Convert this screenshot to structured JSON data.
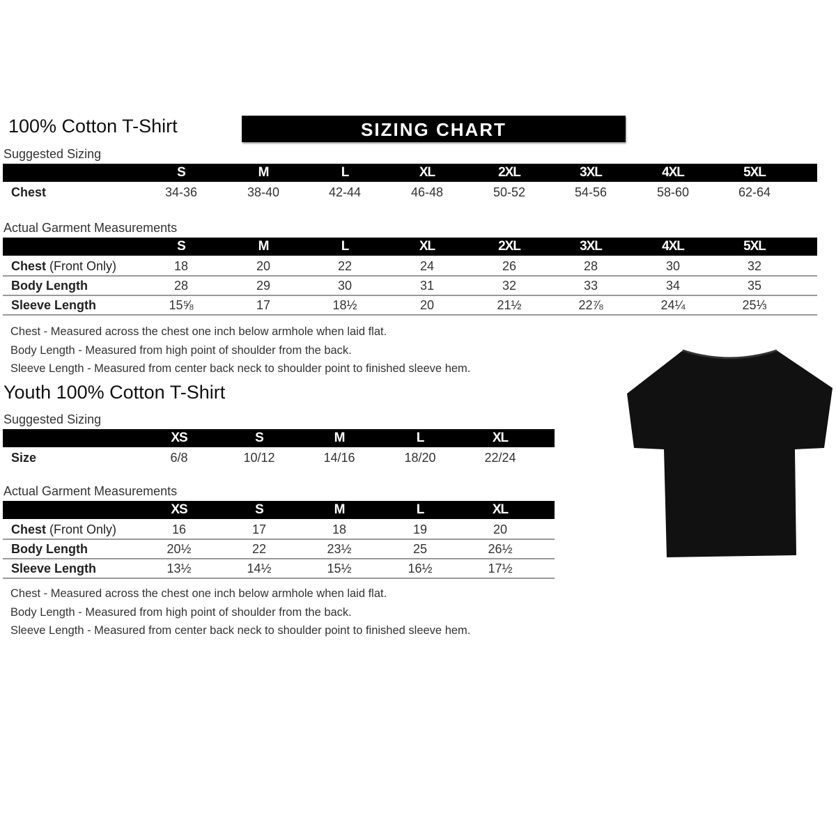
{
  "adult": {
    "title": "100% Cotton T-Shirt",
    "banner": "SIZING CHART",
    "suggested": {
      "label": "Suggested Sizing",
      "sizes": [
        "S",
        "M",
        "L",
        "XL",
        "2XL",
        "3XL",
        "4XL",
        "5XL"
      ],
      "rows": [
        {
          "label": "Chest",
          "values": [
            "34-36",
            "38-40",
            "42-44",
            "46-48",
            "50-52",
            "54-56",
            "58-60",
            "62-64"
          ]
        }
      ]
    },
    "actual": {
      "label": "Actual Garment Measurements",
      "sizes": [
        "S",
        "M",
        "L",
        "XL",
        "2XL",
        "3XL",
        "4XL",
        "5XL"
      ],
      "rows": [
        {
          "label": "Chest",
          "label_suffix": "(Front Only)",
          "values": [
            "18",
            "20",
            "22",
            "24",
            "26",
            "28",
            "30",
            "32"
          ]
        },
        {
          "label": "Body Length",
          "label_suffix": "",
          "values": [
            "28",
            "29",
            "30",
            "31",
            "32",
            "33",
            "34",
            "35"
          ]
        },
        {
          "label": "Sleeve Length",
          "label_suffix": "",
          "values": [
            "15⅝",
            "17",
            "18½",
            "20",
            "21½",
            "22⅞",
            "24¼",
            "25⅓"
          ]
        }
      ]
    },
    "notes": [
      "Chest - Measured across the chest one inch below armhole when laid flat.",
      "Body Length - Measured from high point of shoulder from the back.",
      "Sleeve Length - Measured from center back neck to shoulder point to finished sleeve hem."
    ]
  },
  "youth": {
    "title": "Youth 100% Cotton T-Shirt",
    "suggested": {
      "label": "Suggested Sizing",
      "sizes": [
        "XS",
        "S",
        "M",
        "L",
        "XL"
      ],
      "rows": [
        {
          "label": "Size",
          "values": [
            "6/8",
            "10/12",
            "14/16",
            "18/20",
            "22/24"
          ]
        }
      ]
    },
    "actual": {
      "label": "Actual Garment Measurements",
      "sizes": [
        "XS",
        "S",
        "M",
        "L",
        "XL"
      ],
      "rows": [
        {
          "label": "Chest",
          "label_suffix": "(Front Only)",
          "values": [
            "16",
            "17",
            "18",
            "19",
            "20"
          ]
        },
        {
          "label": "Body Length",
          "label_suffix": "",
          "values": [
            "20½",
            "22",
            "23½",
            "25",
            "26½"
          ]
        },
        {
          "label": "Sleeve Length",
          "label_suffix": "",
          "values": [
            "13½",
            "14½",
            "15½",
            "16½",
            "17½"
          ]
        }
      ]
    },
    "notes": [
      "Chest - Measured across the chest one inch below armhole when laid flat.",
      "Body Length - Measured from high point of shoulder from the back.",
      "Sleeve Length - Measured from center back neck to shoulder point to finished sleeve hem."
    ]
  },
  "image": {
    "icon": "tshirt-icon",
    "color": "#111111"
  }
}
